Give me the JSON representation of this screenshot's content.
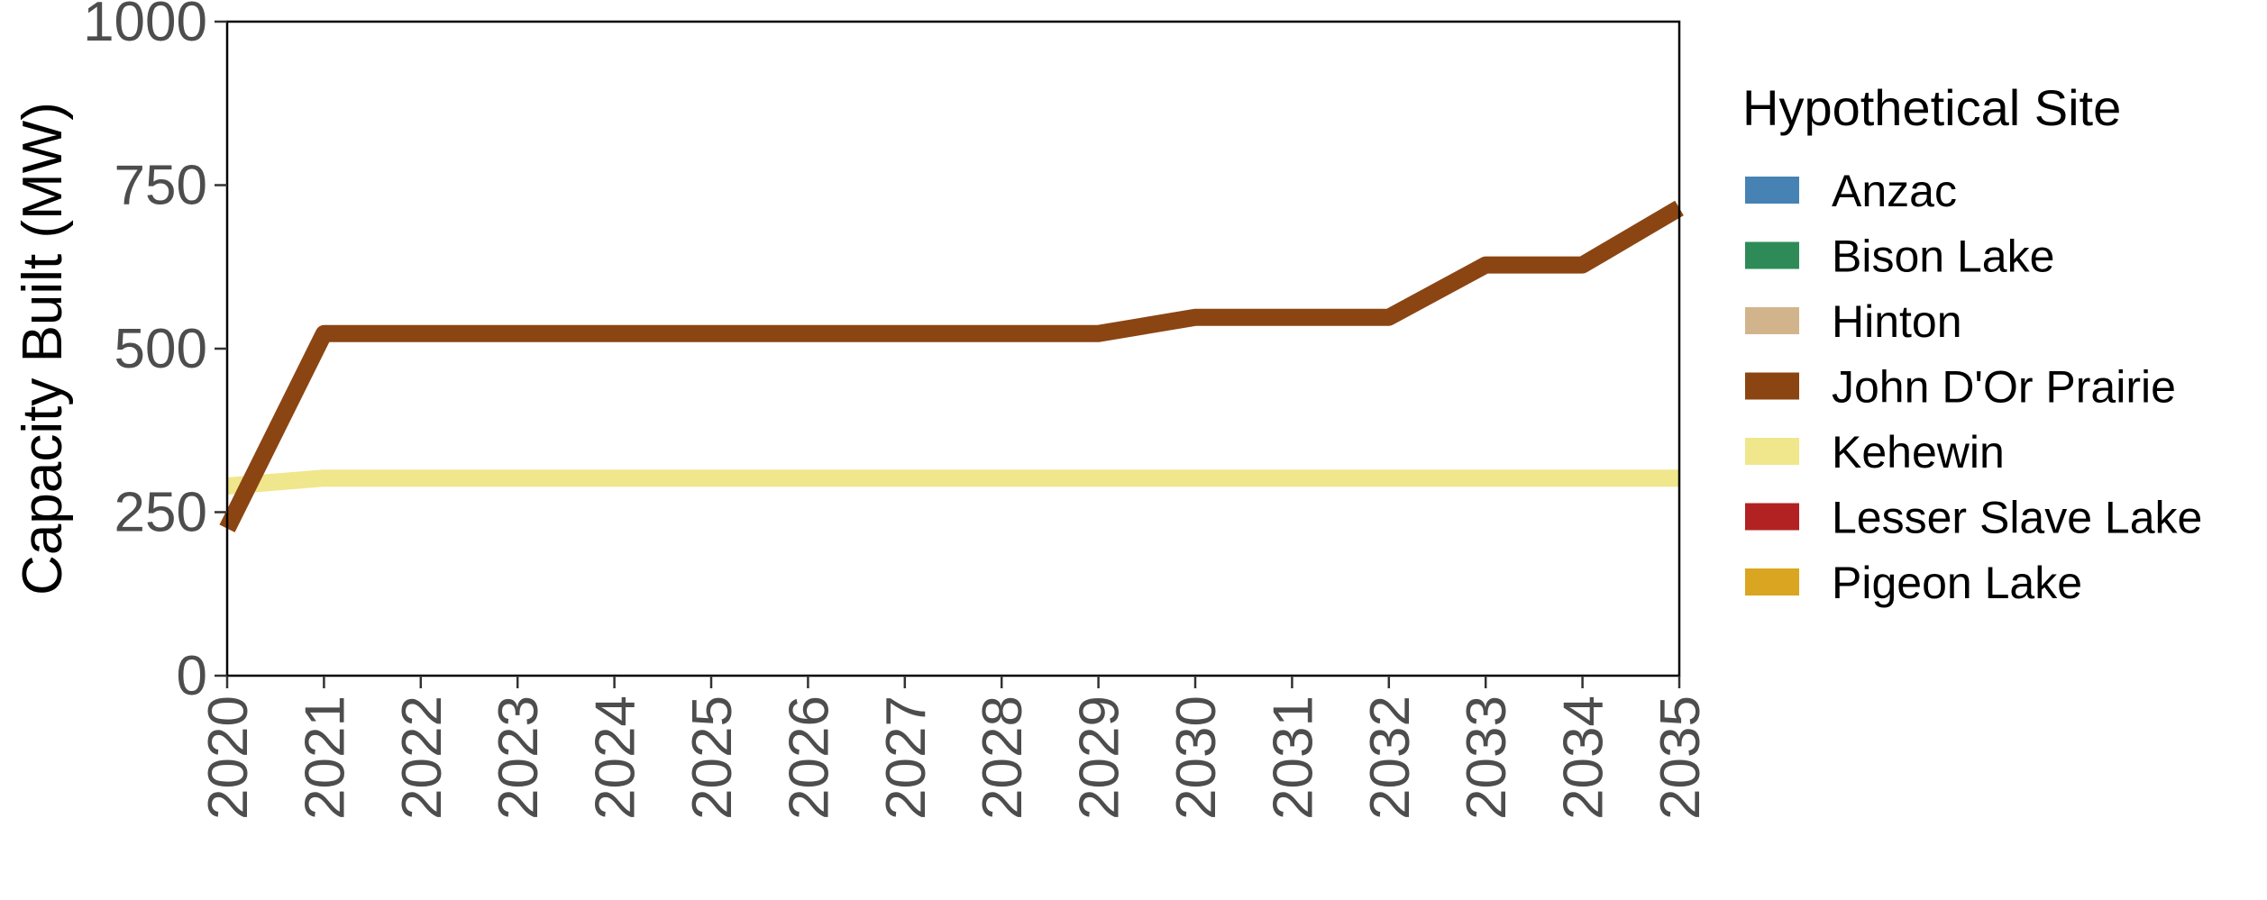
{
  "chart_data": {
    "type": "line",
    "xlabel": "",
    "ylabel": "Capacity Built (MW)",
    "x": [
      2020,
      2021,
      2022,
      2023,
      2024,
      2025,
      2026,
      2027,
      2028,
      2029,
      2030,
      2031,
      2032,
      2033,
      2034,
      2035
    ],
    "ylim": [
      0,
      1000
    ],
    "yticks": [
      0,
      250,
      500,
      750,
      1000
    ],
    "xticks": [
      2020,
      2021,
      2022,
      2023,
      2024,
      2025,
      2026,
      2027,
      2028,
      2029,
      2030,
      2031,
      2032,
      2033,
      2034,
      2035
    ],
    "grid": false,
    "legend": {
      "title": "Hypothetical Site",
      "position": "right",
      "entries": [
        {
          "name": "Anzac",
          "color": "#4682B4"
        },
        {
          "name": "Bison Lake",
          "color": "#2E8B57"
        },
        {
          "name": "Hinton",
          "color": "#D2B48C"
        },
        {
          "name": "John D'Or Prairie",
          "color": "#8B4513"
        },
        {
          "name": "Kehewin",
          "color": "#F0E68C"
        },
        {
          "name": "Lesser Slave Lake",
          "color": "#B22222"
        },
        {
          "name": "Pigeon Lake",
          "color": "#DAA520"
        }
      ]
    },
    "series": [
      {
        "name": "Kehewin",
        "color": "#F0E68C",
        "values": [
          290,
          302,
          302,
          302,
          302,
          302,
          302,
          302,
          302,
          302,
          302,
          302,
          302,
          302,
          302,
          302
        ]
      },
      {
        "name": "John D'Or Prairie",
        "color": "#8B4513",
        "values": [
          225,
          523,
          523,
          523,
          523,
          523,
          523,
          523,
          523,
          523,
          548,
          548,
          548,
          628,
          628,
          715
        ]
      }
    ]
  }
}
